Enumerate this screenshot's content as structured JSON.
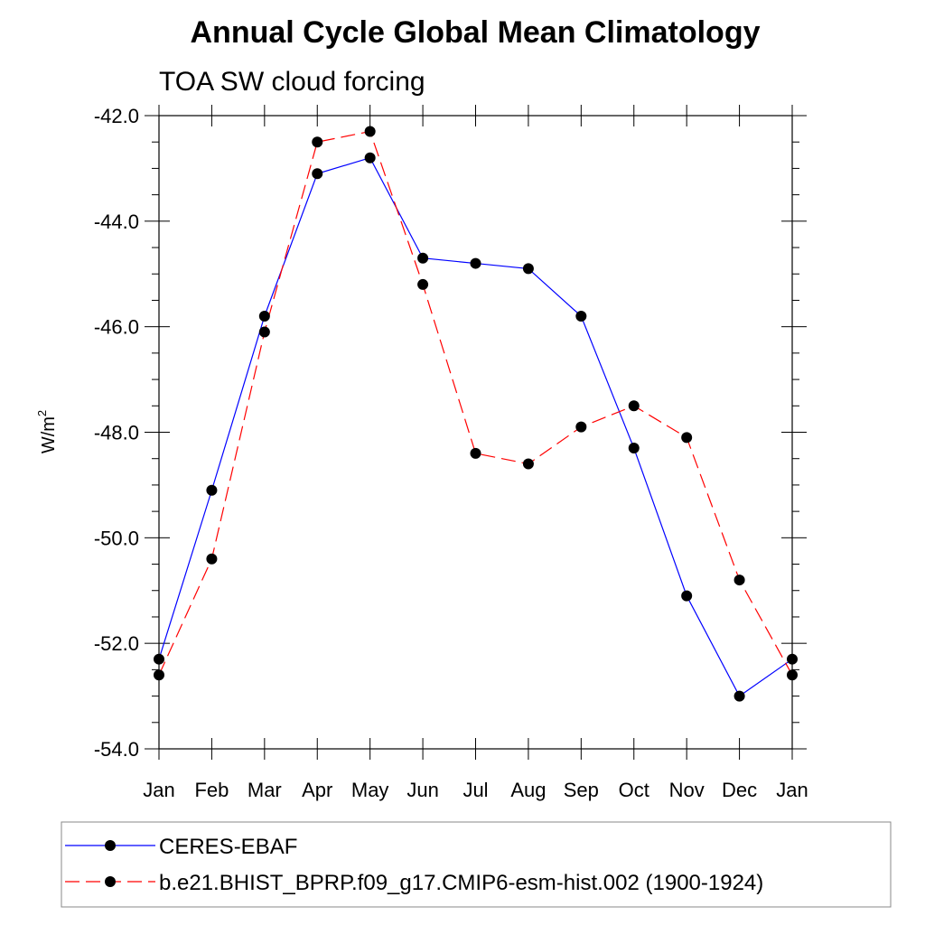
{
  "chart_data": {
    "type": "line",
    "title": "Annual Cycle Global Mean Climatology",
    "subtitle": "TOA SW cloud forcing",
    "ylabel_base": "W/m",
    "ylabel_sup": "2",
    "ylim": [
      -54.0,
      -42.0
    ],
    "yticks": [
      "-42.0",
      "-44.0",
      "-46.0",
      "-48.0",
      "-50.0",
      "-52.0",
      "-54.0"
    ],
    "ytick_values": [
      -42,
      -44,
      -46,
      -48,
      -50,
      -52,
      -54
    ],
    "categories": [
      "Jan",
      "Feb",
      "Mar",
      "Apr",
      "May",
      "Jun",
      "Jul",
      "Aug",
      "Sep",
      "Oct",
      "Nov",
      "Dec",
      "Jan"
    ],
    "series": [
      {
        "name": "CERES-EBAF",
        "color": "#0000ff",
        "dash": "solid",
        "values": [
          -52.3,
          -49.1,
          -45.8,
          -43.1,
          -42.8,
          -44.7,
          -44.8,
          -44.9,
          -45.8,
          -48.3,
          -51.1,
          -53.0,
          -52.3
        ]
      },
      {
        "name": "b.e21.BHIST_BPRP.f09_g17.CMIP6-esm-hist.002 (1900-1924)",
        "color": "#ff0000",
        "dash": "dashed",
        "values": [
          -52.6,
          -50.4,
          -46.1,
          -42.5,
          -42.3,
          -45.2,
          -48.4,
          -48.6,
          -47.9,
          -47.5,
          -48.1,
          -50.8,
          -52.6
        ]
      }
    ],
    "legend_position": "bottom"
  }
}
